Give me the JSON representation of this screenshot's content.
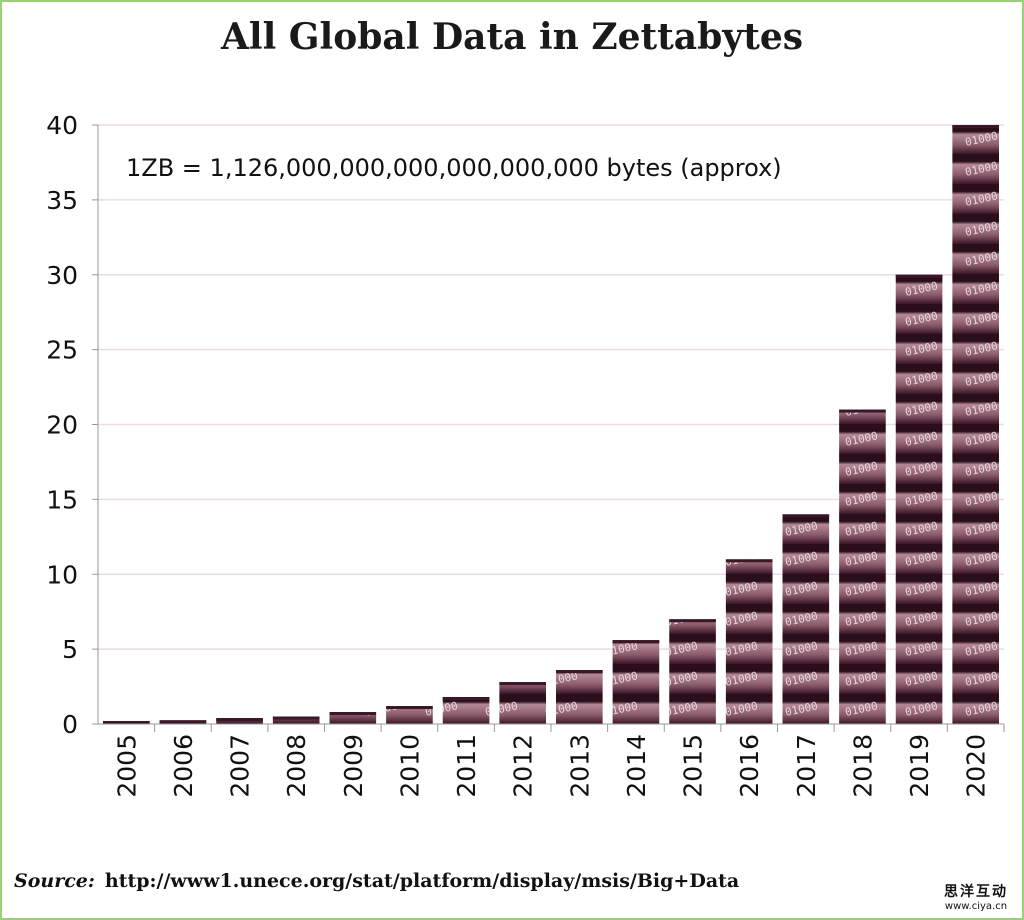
{
  "chart_data": {
    "type": "bar",
    "title": "All Global Data in Zettabytes",
    "annotation": "1ZB = 1,126,000,000,000,000,000,000  bytes (approx)",
    "categories": [
      "2005",
      "2006",
      "2007",
      "2008",
      "2009",
      "2010",
      "2011",
      "2012",
      "2013",
      "2014",
      "2015",
      "2016",
      "2017",
      "2018",
      "2019",
      "2020"
    ],
    "values": [
      0.2,
      0.25,
      0.4,
      0.5,
      0.8,
      1.2,
      1.8,
      2.8,
      3.6,
      5.6,
      7,
      11,
      14,
      21,
      30,
      40
    ],
    "xlabel": "",
    "ylabel": "",
    "ylim": [
      0,
      40
    ],
    "yticks": [
      0,
      5,
      10,
      15,
      20,
      25,
      30,
      35,
      40
    ],
    "grid": true,
    "bar_color": "#3a1626",
    "bar_highlight": "#b68a98"
  },
  "source": {
    "label": "Source:",
    "url": "http://www1.unece.org/stat/platform/display/msis/Big+Data"
  },
  "watermark": {
    "line1": "思洋互动",
    "line2": "www.ciya.cn"
  }
}
